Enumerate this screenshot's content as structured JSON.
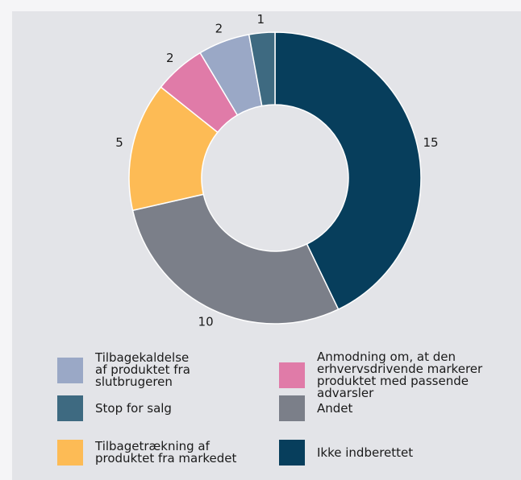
{
  "chart_data": {
    "type": "pie",
    "variant": "donut",
    "slices": [
      {
        "label": "Ikke indberettet",
        "value": 15,
        "color": "#073e5c"
      },
      {
        "label": "Andet",
        "value": 10,
        "color": "#7b7f89"
      },
      {
        "label": "Tilbagetrækning af produktet fra markedet",
        "value": 5,
        "color": "#fdbb55"
      },
      {
        "label": "Anmodning om, at den erhvervsdrivende markerer produktet med passende advarsler",
        "value": 2,
        "color": "#e07ba8"
      },
      {
        "label": "Tilbagekaldelse af produktet fra slutbrugeren",
        "value": 2,
        "color": "#9aa8c6"
      },
      {
        "label": "Stop for salg",
        "value": 1,
        "color": "#3e6a81"
      }
    ],
    "data_labels": [
      "15",
      "10",
      "5",
      "2",
      "2",
      "1"
    ]
  },
  "legend": {
    "recall": {
      "label": "Tilbagekaldelse\naf produktet fra\nslutbrugeren",
      "color": "#9aa8c6"
    },
    "stop_sale": {
      "label": "Stop for salg",
      "color": "#3e6a81"
    },
    "withdrawal": {
      "label": "Tilbagetrækning af\nproduktet fra markedet",
      "color": "#fdbb55"
    },
    "warning": {
      "label": "Anmodning om, at den\nerhvervsdrivende markerer\nproduktet med passende\nadvarsler",
      "color": "#e07ba8"
    },
    "other": {
      "label": "Andet",
      "color": "#7b7f89"
    },
    "not_reported": {
      "label": "Ikke indberettet",
      "color": "#073e5c"
    }
  }
}
